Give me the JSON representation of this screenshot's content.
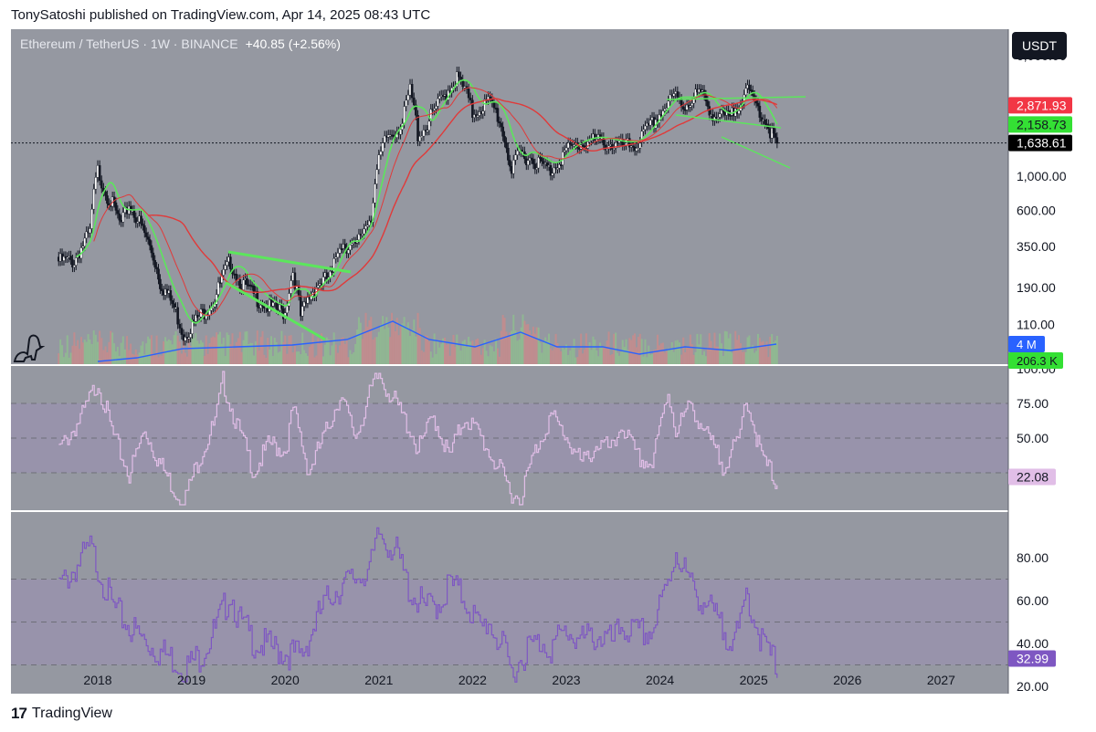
{
  "header": {
    "publisher_line": "TonySatoshi published on TradingView.com, Apr 14, 2025 08:43 UTC"
  },
  "symbol": {
    "title": "Ethereum / TetherUS · 1W · BINANCE",
    "change": "+40.85 (+2.56%)"
  },
  "currency_button": "USDT",
  "footer": {
    "brand": "TradingView"
  },
  "colors": {
    "background": "#9598a1",
    "up": "#ffffff",
    "down": "#131722",
    "green_line": "#5ce65c",
    "red_line": "#e03a3a",
    "volume_ma": "#2962ff",
    "stoch_line": "#e1bee7",
    "rsi_line": "#7e57c2",
    "band_fill": "#9c8fb8"
  },
  "price_axis": {
    "ticks": [
      "6,000.00",
      "1,000.00",
      "600.00",
      "350.00",
      "190.00",
      "110.00"
    ],
    "labels": [
      {
        "text": "2,871.93",
        "color": "#f23645"
      },
      {
        "text": "2,158.73",
        "color": "#34e034"
      },
      {
        "text": "1,638.61",
        "color": "#000000"
      }
    ],
    "volume_labels": [
      {
        "text": "4 M",
        "color": "#2962ff"
      },
      {
        "text": "206.3 K",
        "color": "#34e034"
      }
    ]
  },
  "stoch_axis": {
    "ticks": [
      "100.00",
      "75.00",
      "50.00",
      "25.00"
    ],
    "value_label": "22.08"
  },
  "rsi_axis": {
    "ticks": [
      "80.00",
      "60.00",
      "40.00",
      "20.00"
    ],
    "value_label": "32.99"
  },
  "time_axis": {
    "ticks": [
      "2018",
      "2019",
      "2020",
      "2021",
      "2022",
      "2023",
      "2024",
      "2025",
      "2026",
      "2027"
    ]
  },
  "chart_data": [
    {
      "type": "line",
      "title": "Ethereum / TetherUS · 1W · BINANCE",
      "scale": "log",
      "ylim": [
        60,
        8000
      ],
      "last_price": 1638.61,
      "x": [
        "2017-08",
        "2017-10",
        "2017-12",
        "2018-01",
        "2018-02",
        "2018-04",
        "2018-05",
        "2018-07",
        "2018-09",
        "2018-11",
        "2018-12",
        "2019-02",
        "2019-04",
        "2019-06",
        "2019-07",
        "2019-09",
        "2019-11",
        "2020-01",
        "2020-02",
        "2020-03",
        "2020-05",
        "2020-07",
        "2020-08",
        "2020-10",
        "2020-12",
        "2021-01",
        "2021-02",
        "2021-04",
        "2021-05",
        "2021-06",
        "2021-07",
        "2021-09",
        "2021-11",
        "2021-12",
        "2022-01",
        "2022-03",
        "2022-04",
        "2022-06",
        "2022-07",
        "2022-09",
        "2022-11",
        "2023-01",
        "2023-02",
        "2023-04",
        "2023-06",
        "2023-08",
        "2023-10",
        "2023-12",
        "2024-03",
        "2024-04",
        "2024-06",
        "2024-08",
        "2024-10",
        "2024-12",
        "2025-02",
        "2025-04"
      ],
      "series": [
        {
          "values": [
            300,
            300,
            450,
            1150,
            850,
            500,
            700,
            450,
            220,
            140,
            100,
            130,
            170,
            300,
            230,
            180,
            150,
            140,
            260,
            130,
            210,
            240,
            400,
            360,
            600,
            1300,
            1900,
            2300,
            3800,
            2000,
            2200,
            3300,
            4600,
            3800,
            2700,
            3200,
            2800,
            1100,
            1500,
            1350,
            1150,
            1550,
            1650,
            1800,
            1750,
            1650,
            1700,
            2300,
            3500,
            3000,
            3700,
            2600,
            2500,
            3800,
            2700,
            1638
          ]
        }
      ]
    },
    {
      "type": "line",
      "title": "",
      "ylim": [
        0,
        100
      ],
      "last_value": 22.08,
      "x": [
        "2017-08",
        "2017-11",
        "2018-01",
        "2018-03",
        "2018-05",
        "2018-07",
        "2018-09",
        "2018-11",
        "2018-12",
        "2019-02",
        "2019-04",
        "2019-05",
        "2019-07",
        "2019-09",
        "2019-11",
        "2020-01",
        "2020-02",
        "2020-04",
        "2020-06",
        "2020-08",
        "2020-10",
        "2020-12",
        "2021-01",
        "2021-03",
        "2021-05",
        "2021-06",
        "2021-08",
        "2021-10",
        "2021-12",
        "2022-02",
        "2022-04",
        "2022-06",
        "2022-07",
        "2022-09",
        "2022-11",
        "2023-01",
        "2023-03",
        "2023-05",
        "2023-07",
        "2023-08",
        "2023-10",
        "2023-12",
        "2024-02",
        "2024-03",
        "2024-05",
        "2024-07",
        "2024-09",
        "2024-11",
        "2024-12",
        "2025-02",
        "2025-04"
      ],
      "series": [
        {
          "values": [
            45,
            70,
            95,
            55,
            28,
            60,
            35,
            15,
            8,
            40,
            65,
            95,
            60,
            30,
            50,
            45,
            75,
            30,
            55,
            85,
            55,
            88,
            100,
            80,
            60,
            45,
            70,
            40,
            70,
            55,
            35,
            15,
            10,
            45,
            70,
            55,
            35,
            50,
            45,
            65,
            40,
            35,
            88,
            60,
            78,
            55,
            35,
            50,
            85,
            40,
            22
          ]
        }
      ]
    },
    {
      "type": "line",
      "title": "",
      "ylim": [
        20,
        100
      ],
      "last_value": 32.99,
      "x": [
        "2017-08",
        "2017-12",
        "2018-01",
        "2018-03",
        "2018-05",
        "2018-07",
        "2018-09",
        "2018-11",
        "2018-12",
        "2019-02",
        "2019-04",
        "2019-06",
        "2019-07",
        "2019-09",
        "2019-11",
        "2020-01",
        "2020-03",
        "2020-05",
        "2020-07",
        "2020-09",
        "2020-12",
        "2021-01",
        "2021-03",
        "2021-05",
        "2021-07",
        "2021-09",
        "2021-10",
        "2021-12",
        "2022-02",
        "2022-03",
        "2022-05",
        "2022-06",
        "2022-08",
        "2022-10",
        "2022-11",
        "2023-01",
        "2023-03",
        "2023-05",
        "2023-07",
        "2023-08",
        "2023-10",
        "2023-12",
        "2024-02",
        "2024-03",
        "2024-05",
        "2024-07",
        "2024-09",
        "2024-11",
        "2024-12",
        "2025-02",
        "2025-04"
      ],
      "series": [
        {
          "values": [
            70,
            88,
            80,
            60,
            52,
            45,
            40,
            36,
            32,
            38,
            50,
            68,
            55,
            45,
            42,
            40,
            38,
            55,
            68,
            72,
            80,
            95,
            88,
            68,
            60,
            64,
            72,
            65,
            50,
            55,
            40,
            30,
            42,
            45,
            42,
            50,
            45,
            48,
            44,
            52,
            48,
            50,
            72,
            88,
            70,
            62,
            50,
            46,
            68,
            45,
            33
          ]
        }
      ]
    }
  ]
}
